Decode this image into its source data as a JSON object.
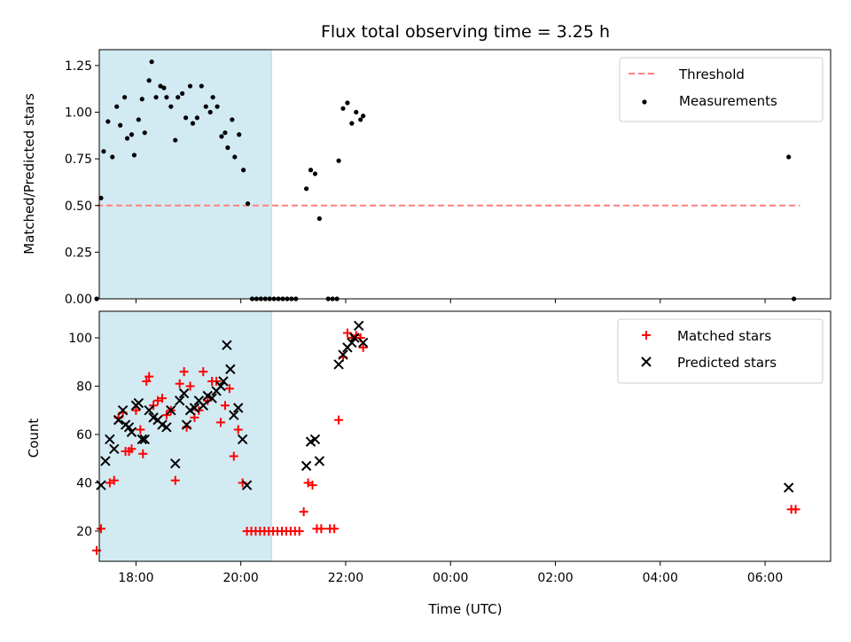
{
  "chart_data": {
    "title": "Flux total observing time = 3.25 h",
    "xlabel": "Time (UTC)",
    "x_unit": "hours since 00:00 UTC",
    "xlim": [
      "17:18",
      "07:15"
    ],
    "x_ticks": [
      "18:00",
      "20:00",
      "22:00",
      "00:00",
      "02:00",
      "04:00",
      "06:00"
    ],
    "highlight_span": [
      "17:18",
      "20:35"
    ],
    "highlight_color": "#add8e6",
    "panels": [
      {
        "type": "scatter",
        "ylabel": "Matched/Predicted stars",
        "ylim": [
          0,
          1.335
        ],
        "y_ticks": [
          "0.00",
          "0.25",
          "0.50",
          "0.75",
          "1.00",
          "1.25"
        ],
        "legend_position": "top-right",
        "threshold": {
          "name": "Threshold",
          "value": 0.5,
          "x_range": [
            "17:15",
            "06:40"
          ],
          "color": "#ff7f7f"
        },
        "series": [
          {
            "name": "Measurements",
            "marker": "dot",
            "color": "#000000",
            "points": [
              [
                "17:15",
                0.0
              ],
              [
                "17:20",
                0.54
              ],
              [
                "17:23",
                0.79
              ],
              [
                "17:28",
                0.95
              ],
              [
                "17:33",
                0.76
              ],
              [
                "17:38",
                1.03
              ],
              [
                "17:42",
                0.93
              ],
              [
                "17:47",
                1.08
              ],
              [
                "17:50",
                0.86
              ],
              [
                "17:55",
                0.88
              ],
              [
                "17:58",
                0.77
              ],
              [
                "18:03",
                0.96
              ],
              [
                "18:07",
                1.07
              ],
              [
                "18:10",
                0.89
              ],
              [
                "18:15",
                1.17
              ],
              [
                "18:18",
                1.27
              ],
              [
                "18:23",
                1.08
              ],
              [
                "18:28",
                1.14
              ],
              [
                "18:32",
                1.13
              ],
              [
                "18:35",
                1.08
              ],
              [
                "18:40",
                1.03
              ],
              [
                "18:45",
                0.85
              ],
              [
                "18:48",
                1.08
              ],
              [
                "18:53",
                1.1
              ],
              [
                "18:57",
                0.97
              ],
              [
                "19:02",
                1.14
              ],
              [
                "19:05",
                0.94
              ],
              [
                "19:10",
                0.97
              ],
              [
                "19:15",
                1.14
              ],
              [
                "19:20",
                1.03
              ],
              [
                "19:25",
                1.0
              ],
              [
                "19:28",
                1.08
              ],
              [
                "19:33",
                1.03
              ],
              [
                "19:38",
                0.87
              ],
              [
                "19:42",
                0.89
              ],
              [
                "19:45",
                0.81
              ],
              [
                "19:50",
                0.96
              ],
              [
                "19:53",
                0.76
              ],
              [
                "19:58",
                0.88
              ],
              [
                "20:03",
                0.69
              ],
              [
                "20:08",
                0.51
              ],
              [
                "20:13",
                0.0
              ],
              [
                "20:18",
                0.0
              ],
              [
                "20:23",
                0.0
              ],
              [
                "20:28",
                0.0
              ],
              [
                "20:33",
                0.0
              ],
              [
                "20:38",
                0.0
              ],
              [
                "20:43",
                0.0
              ],
              [
                "20:48",
                0.0
              ],
              [
                "20:53",
                0.0
              ],
              [
                "20:58",
                0.0
              ],
              [
                "21:03",
                0.0
              ],
              [
                "21:15",
                0.59
              ],
              [
                "21:20",
                0.69
              ],
              [
                "21:25",
                0.67
              ],
              [
                "21:30",
                0.43
              ],
              [
                "21:40",
                0.0
              ],
              [
                "21:45",
                0.0
              ],
              [
                "21:50",
                0.0
              ],
              [
                "21:52",
                0.74
              ],
              [
                "21:57",
                1.02
              ],
              [
                "22:02",
                1.05
              ],
              [
                "22:07",
                0.94
              ],
              [
                "22:12",
                1.0
              ],
              [
                "22:17",
                0.96
              ],
              [
                "22:20",
                0.98
              ],
              [
                "06:27",
                0.76
              ],
              [
                "06:33",
                0.0
              ]
            ]
          }
        ]
      },
      {
        "type": "scatter",
        "ylabel": "Count",
        "ylim": [
          7.5,
          111
        ],
        "y_ticks": [
          "20",
          "40",
          "60",
          "80",
          "100"
        ],
        "legend_position": "top-right",
        "series": [
          {
            "name": "Matched stars",
            "marker": "plus",
            "color": "#ff0000",
            "points": [
              [
                "17:15",
                12
              ],
              [
                "17:20",
                21
              ],
              [
                "17:30",
                40
              ],
              [
                "17:35",
                41
              ],
              [
                "17:40",
                67
              ],
              [
                "17:45",
                69
              ],
              [
                "17:48",
                53
              ],
              [
                "17:52",
                53
              ],
              [
                "17:55",
                54
              ],
              [
                "18:00",
                70
              ],
              [
                "18:05",
                62
              ],
              [
                "18:08",
                52
              ],
              [
                "18:12",
                82
              ],
              [
                "18:15",
                84
              ],
              [
                "18:20",
                72
              ],
              [
                "18:25",
                74
              ],
              [
                "18:30",
                75
              ],
              [
                "18:35",
                68
              ],
              [
                "18:40",
                70
              ],
              [
                "18:45",
                41
              ],
              [
                "18:50",
                81
              ],
              [
                "18:55",
                86
              ],
              [
                "18:58",
                63
              ],
              [
                "19:02",
                80
              ],
              [
                "19:07",
                67
              ],
              [
                "19:12",
                70
              ],
              [
                "19:17",
                86
              ],
              [
                "19:22",
                74
              ],
              [
                "19:27",
                82
              ],
              [
                "19:32",
                82
              ],
              [
                "19:37",
                65
              ],
              [
                "19:42",
                72
              ],
              [
                "19:47",
                79
              ],
              [
                "19:52",
                51
              ],
              [
                "19:57",
                62
              ],
              [
                "20:02",
                40
              ],
              [
                "20:07",
                20
              ],
              [
                "20:12",
                20
              ],
              [
                "20:17",
                20
              ],
              [
                "20:22",
                20
              ],
              [
                "20:27",
                20
              ],
              [
                "20:32",
                20
              ],
              [
                "20:37",
                20
              ],
              [
                "20:42",
                20
              ],
              [
                "20:47",
                20
              ],
              [
                "20:52",
                20
              ],
              [
                "20:57",
                20
              ],
              [
                "21:02",
                20
              ],
              [
                "21:07",
                20
              ],
              [
                "21:12",
                28
              ],
              [
                "21:17",
                40
              ],
              [
                "21:22",
                39
              ],
              [
                "21:27",
                21
              ],
              [
                "21:32",
                21
              ],
              [
                "21:42",
                21
              ],
              [
                "21:47",
                21
              ],
              [
                "21:52",
                66
              ],
              [
                "21:57",
                92
              ],
              [
                "22:02",
                102
              ],
              [
                "22:07",
                100
              ],
              [
                "22:12",
                101
              ],
              [
                "22:17",
                100
              ],
              [
                "22:20",
                96
              ],
              [
                "06:30",
                29
              ],
              [
                "06:35",
                29
              ]
            ]
          },
          {
            "name": "Predicted stars",
            "marker": "x",
            "color": "#000000",
            "points": [
              [
                "17:20",
                39
              ],
              [
                "17:25",
                49
              ],
              [
                "17:30",
                58
              ],
              [
                "17:35",
                54
              ],
              [
                "17:40",
                66
              ],
              [
                "17:45",
                70
              ],
              [
                "17:48",
                64
              ],
              [
                "17:52",
                63
              ],
              [
                "17:55",
                61
              ],
              [
                "18:00",
                72
              ],
              [
                "18:03",
                73
              ],
              [
                "18:07",
                58
              ],
              [
                "18:10",
                58
              ],
              [
                "18:15",
                70
              ],
              [
                "18:20",
                67
              ],
              [
                "18:25",
                66
              ],
              [
                "18:30",
                64
              ],
              [
                "18:35",
                63
              ],
              [
                "18:40",
                70
              ],
              [
                "18:45",
                48
              ],
              [
                "18:50",
                74
              ],
              [
                "18:55",
                77
              ],
              [
                "18:58",
                64
              ],
              [
                "19:02",
                70
              ],
              [
                "19:07",
                71
              ],
              [
                "19:12",
                74
              ],
              [
                "19:17",
                72
              ],
              [
                "19:22",
                76
              ],
              [
                "19:27",
                75
              ],
              [
                "19:32",
                78
              ],
              [
                "19:37",
                80
              ],
              [
                "19:40",
                82
              ],
              [
                "19:44",
                97
              ],
              [
                "19:48",
                87
              ],
              [
                "19:52",
                68
              ],
              [
                "19:57",
                71
              ],
              [
                "20:02",
                58
              ],
              [
                "20:07",
                39
              ],
              [
                "21:15",
                47
              ],
              [
                "21:20",
                57
              ],
              [
                "21:25",
                58
              ],
              [
                "21:30",
                49
              ],
              [
                "21:52",
                89
              ],
              [
                "21:57",
                93
              ],
              [
                "22:02",
                96
              ],
              [
                "22:07",
                98
              ],
              [
                "22:10",
                100
              ],
              [
                "22:15",
                105
              ],
              [
                "22:20",
                98
              ],
              [
                "06:27",
                38
              ]
            ]
          }
        ]
      }
    ]
  }
}
